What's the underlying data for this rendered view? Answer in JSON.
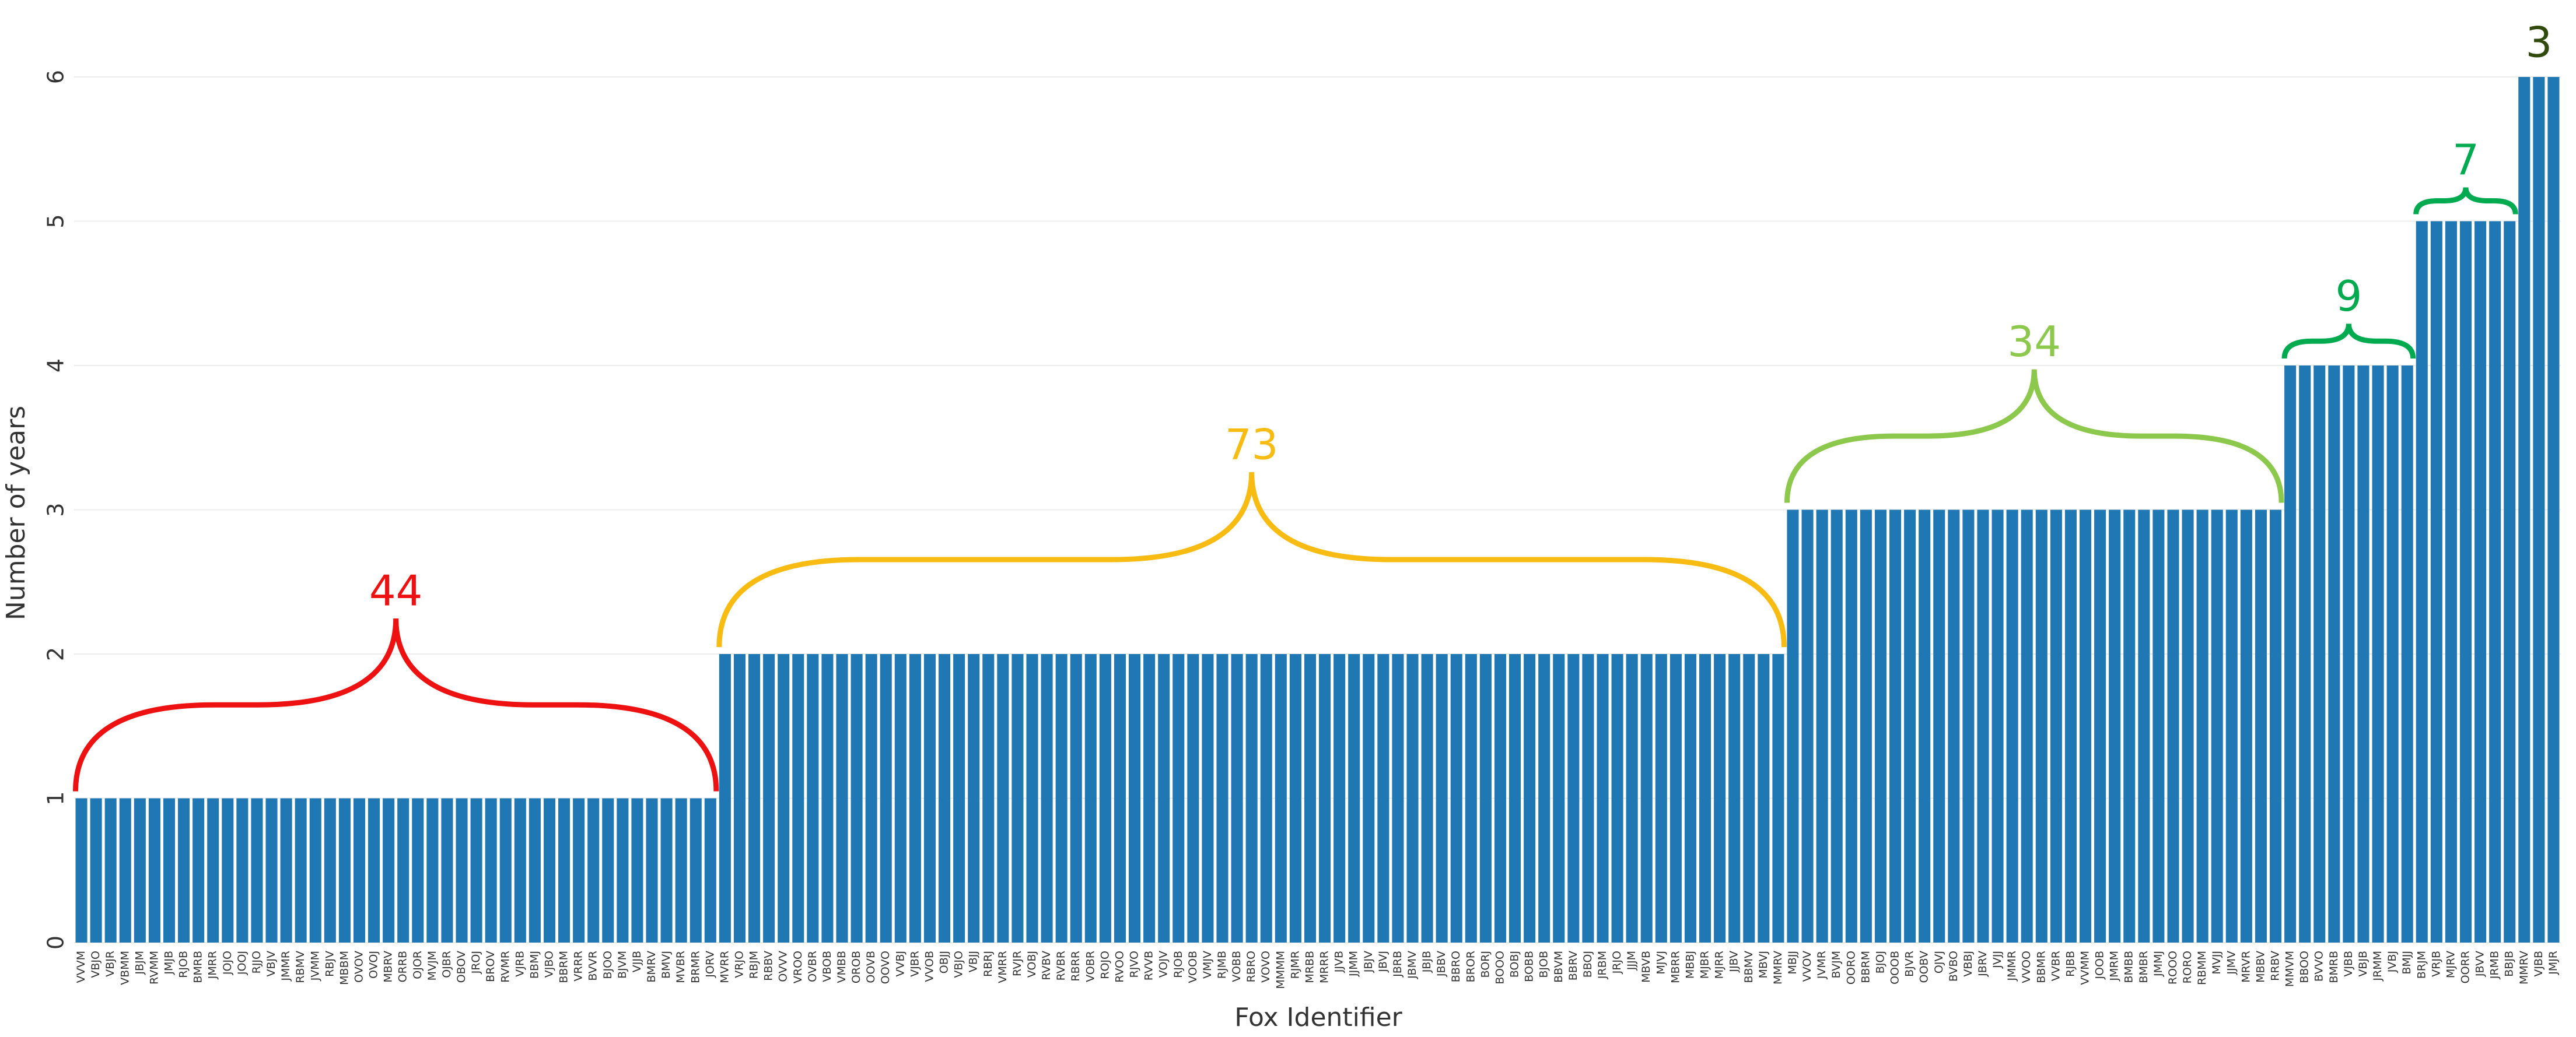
{
  "chart_data": {
    "type": "bar",
    "x_label": "Fox Identifier",
    "y_label": "Number of years",
    "color": "#1f77b4",
    "grid": true,
    "ylim": [
      0,
      6.35
    ],
    "yticks": [
      0,
      1,
      2,
      3,
      4,
      5,
      6
    ],
    "categories": [
      "VVVM",
      "VBJO",
      "VBJR",
      "VBMM",
      "JBJM",
      "RVMM",
      "JMJB",
      "RJOB",
      "BMRB",
      "JMRR",
      "JOJO",
      "JOOJ",
      "RJJO",
      "VBJV",
      "JMMR",
      "RBMV",
      "JVMM",
      "RBJV",
      "MBBM",
      "OVOV",
      "OVOJ",
      "MBRV",
      "ORRB",
      "OJOR",
      "MVJM",
      "OJBR",
      "OBOV",
      "JROJ",
      "BROV",
      "RVMR",
      "VJRB",
      "BBMJ",
      "VJBO",
      "BBRM",
      "VRRR",
      "BVVR",
      "BJOO",
      "BJVM",
      "VJJB",
      "BMRV",
      "BMVJ",
      "MVBR",
      "BRMR",
      "JORV",
      "MVRR",
      "VRJO",
      "RBJM",
      "RBBV",
      "OVVV",
      "VROO",
      "OVBR",
      "VBOB",
      "VMBB",
      "OROB",
      "OOVB",
      "OOVO",
      "VVBJ",
      "VJBR",
      "VVOB",
      "OBJJ",
      "VBJO",
      "VBJJ",
      "RBRJ",
      "VMRR",
      "RVJR",
      "VOBJ",
      "RVBV",
      "RVBR",
      "RBRR",
      "VOBR",
      "ROJO",
      "RVOO",
      "RJVO",
      "RVVB",
      "VOJV",
      "RJOB",
      "VOOB",
      "VMJV",
      "RJMB",
      "VOBB",
      "RBRO",
      "VOVO",
      "MMMM",
      "RJMR",
      "MRBB",
      "MRRR",
      "JJVB",
      "JJMM",
      "JBJV",
      "JBVJ",
      "JBRB",
      "JBMV",
      "JBJB",
      "JBBV",
      "BBRO",
      "BROR",
      "BORJ",
      "BOOO",
      "BOBJ",
      "BOBB",
      "BJOB",
      "BBVM",
      "BBRV",
      "BBOJ",
      "JRBM",
      "JRJO",
      "JJJM",
      "MBVB",
      "MJVJ",
      "MBRR",
      "MBBJ",
      "MJBR",
      "MJRR",
      "JJBV",
      "BBMV",
      "MBVJ",
      "MMRV",
      "MBJJ",
      "VVOV",
      "JVMR",
      "BVJM",
      "OORO",
      "BBRM",
      "BJOJ",
      "OOOB",
      "BJVR",
      "OOBV",
      "OJVJ",
      "BVBO",
      "VBBJ",
      "JBRV",
      "JVJJ",
      "JMMR",
      "VVOO",
      "BBMR",
      "VVBR",
      "RJBB",
      "VVMM",
      "JOOB",
      "JMRM",
      "BMBB",
      "BMBR",
      "JMMJ",
      "ROOO",
      "RORO",
      "RBMM",
      "MVJJ",
      "JJMV",
      "MRVR",
      "MBBV",
      "RRBV",
      "MMVM",
      "BBOO",
      "BVVO",
      "BMRB",
      "VJBB",
      "VBJB",
      "JRMM",
      "JVBJ",
      "BMJJ",
      "BRJM",
      "VRJB",
      "MJRV",
      "OORR",
      "JBVV",
      "JRMB",
      "BBJB",
      "MMRV",
      "VJBB",
      "JMJR"
    ],
    "values": [
      1,
      1,
      1,
      1,
      1,
      1,
      1,
      1,
      1,
      1,
      1,
      1,
      1,
      1,
      1,
      1,
      1,
      1,
      1,
      1,
      1,
      1,
      1,
      1,
      1,
      1,
      1,
      1,
      1,
      1,
      1,
      1,
      1,
      1,
      1,
      1,
      1,
      1,
      1,
      1,
      1,
      1,
      1,
      1,
      2,
      2,
      2,
      2,
      2,
      2,
      2,
      2,
      2,
      2,
      2,
      2,
      2,
      2,
      2,
      2,
      2,
      2,
      2,
      2,
      2,
      2,
      2,
      2,
      2,
      2,
      2,
      2,
      2,
      2,
      2,
      2,
      2,
      2,
      2,
      2,
      2,
      2,
      2,
      2,
      2,
      2,
      2,
      2,
      2,
      2,
      2,
      2,
      2,
      2,
      2,
      2,
      2,
      2,
      2,
      2,
      2,
      2,
      2,
      2,
      2,
      2,
      2,
      2,
      2,
      2,
      2,
      2,
      2,
      2,
      2,
      2,
      2,
      3,
      3,
      3,
      3,
      3,
      3,
      3,
      3,
      3,
      3,
      3,
      3,
      3,
      3,
      3,
      3,
      3,
      3,
      3,
      3,
      3,
      3,
      3,
      3,
      3,
      3,
      3,
      3,
      3,
      3,
      3,
      3,
      3,
      3,
      4,
      4,
      4,
      4,
      4,
      4,
      4,
      4,
      4,
      5,
      5,
      5,
      5,
      5,
      5,
      5,
      6,
      6,
      6
    ],
    "annotations": [
      {
        "label": 44,
        "color": "#ee1111"
      },
      {
        "label": 73,
        "color": "#f7bb11"
      },
      {
        "label": 34,
        "color": "#8cc84b"
      },
      {
        "label": 9,
        "color": "#00aa4f"
      },
      {
        "label": 7,
        "color": "#00aa4f"
      },
      {
        "label": 3,
        "color": "#2f4a0a"
      }
    ]
  }
}
